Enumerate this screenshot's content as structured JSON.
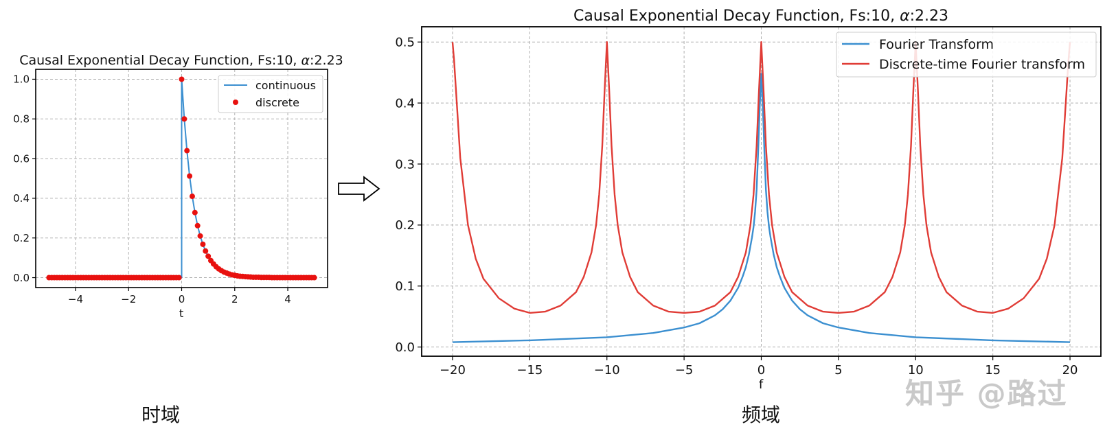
{
  "chart_data": [
    {
      "type": "line",
      "title_prefix": "Causal Exponential Decay Function, Fs:10, ",
      "title_alpha": "α",
      "title_suffix": ":2.23",
      "xlabel": "t",
      "ylabel": "",
      "xlim": [
        -5.5,
        5.5
      ],
      "ylim": [
        -0.05,
        1.05
      ],
      "xticks": [
        -4,
        -2,
        0,
        2,
        4
      ],
      "yticks": [
        0.0,
        0.2,
        0.4,
        0.6,
        0.8,
        1.0
      ],
      "xtick_labels": [
        "−4",
        "−2",
        "0",
        "2",
        "4"
      ],
      "ytick_labels": [
        "0.0",
        "0.2",
        "0.4",
        "0.6",
        "0.8",
        "1.0"
      ],
      "grid": true,
      "legend_position": "top-right",
      "series": [
        {
          "name": "continuous",
          "style": "line",
          "color": "#3b8fd0",
          "x": [
            -5.0,
            -0.0001,
            0.0,
            0.1,
            0.2,
            0.3,
            0.4,
            0.5,
            0.6,
            0.7,
            0.8,
            0.9,
            1.0,
            1.2,
            1.4,
            1.6,
            1.8,
            2.0,
            2.5,
            3.0,
            3.5,
            4.0,
            4.5,
            5.0
          ],
          "values": [
            0.0,
            0.0,
            1.0,
            0.8,
            0.64,
            0.512,
            0.41,
            0.328,
            0.262,
            0.21,
            0.168,
            0.134,
            0.108,
            0.069,
            0.044,
            0.028,
            0.018,
            0.012,
            0.004,
            0.001,
            0.0,
            0.0,
            0.0,
            0.0
          ]
        },
        {
          "name": "discrete",
          "style": "markers",
          "color": "#e8110f",
          "x": [
            -5.0,
            -4.9,
            -4.8,
            -4.7,
            -4.6,
            -4.5,
            -4.4,
            -4.3,
            -4.2,
            -4.1,
            -4.0,
            -3.9,
            -3.8,
            -3.7,
            -3.6,
            -3.5,
            -3.4,
            -3.3,
            -3.2,
            -3.1,
            -3.0,
            -2.9,
            -2.8,
            -2.7,
            -2.6,
            -2.5,
            -2.4,
            -2.3,
            -2.2,
            -2.1,
            -2.0,
            -1.9,
            -1.8,
            -1.7,
            -1.6,
            -1.5,
            -1.4,
            -1.3,
            -1.2,
            -1.1,
            -1.0,
            -0.9,
            -0.8,
            -0.7,
            -0.6,
            -0.5,
            -0.4,
            -0.3,
            -0.2,
            -0.1,
            0.0,
            0.1,
            0.2,
            0.3,
            0.4,
            0.5,
            0.6,
            0.7,
            0.8,
            0.9,
            1.0,
            1.1,
            1.2,
            1.3,
            1.4,
            1.5,
            1.6,
            1.7,
            1.8,
            1.9,
            2.0,
            2.1,
            2.2,
            2.3,
            2.4,
            2.5,
            2.6,
            2.7,
            2.8,
            2.9,
            3.0,
            3.1,
            3.2,
            3.3,
            3.4,
            3.5,
            3.6,
            3.7,
            3.8,
            3.9,
            4.0,
            4.1,
            4.2,
            4.3,
            4.4,
            4.5,
            4.6,
            4.7,
            4.8,
            4.9,
            5.0
          ],
          "values": [
            0.0,
            0.0,
            0.0,
            0.0,
            0.0,
            0.0,
            0.0,
            0.0,
            0.0,
            0.0,
            0.0,
            0.0,
            0.0,
            0.0,
            0.0,
            0.0,
            0.0,
            0.0,
            0.0,
            0.0,
            0.0,
            0.0,
            0.0,
            0.0,
            0.0,
            0.0,
            0.0,
            0.0,
            0.0,
            0.0,
            0.0,
            0.0,
            0.0,
            0.0,
            0.0,
            0.0,
            0.0,
            0.0,
            0.0,
            0.0,
            0.0,
            0.0,
            0.0,
            0.0,
            0.0,
            0.0,
            0.0,
            0.0,
            0.0,
            0.0,
            1.0,
            0.8,
            0.64,
            0.512,
            0.41,
            0.328,
            0.262,
            0.21,
            0.168,
            0.134,
            0.108,
            0.086,
            0.069,
            0.055,
            0.044,
            0.035,
            0.028,
            0.023,
            0.018,
            0.014,
            0.012,
            0.009,
            0.007,
            0.006,
            0.005,
            0.004,
            0.003,
            0.002,
            0.002,
            0.002,
            0.001,
            0.001,
            0.001,
            0.001,
            0.0,
            0.0,
            0.0,
            0.0,
            0.0,
            0.0,
            0.0,
            0.0,
            0.0,
            0.0,
            0.0,
            0.0,
            0.0,
            0.0,
            0.0,
            0.0,
            0.0
          ]
        }
      ]
    },
    {
      "type": "line",
      "title_prefix": "Causal Exponential Decay Function, Fs:10, ",
      "title_alpha": "α",
      "title_suffix": ":2.23",
      "xlabel": "f",
      "ylabel": "",
      "xlim": [
        -22,
        22
      ],
      "ylim": [
        -0.015,
        0.525
      ],
      "xticks": [
        -20,
        -15,
        -10,
        -5,
        0,
        5,
        10,
        15,
        20
      ],
      "yticks": [
        0.0,
        0.1,
        0.2,
        0.3,
        0.4,
        0.5
      ],
      "xtick_labels": [
        "−20",
        "−15",
        "−10",
        "−5",
        "0",
        "5",
        "10",
        "15",
        "20"
      ],
      "ytick_labels": [
        "0.0",
        "0.1",
        "0.2",
        "0.3",
        "0.4",
        "0.5"
      ],
      "grid": true,
      "legend_position": "top-right",
      "series": [
        {
          "name": "Fourier Transform",
          "color": "#3b8fd0",
          "x": [
            -20,
            -15,
            -10,
            -7,
            -5,
            -4,
            -3,
            -2.5,
            -2,
            -1.5,
            -1.2,
            -1,
            -0.8,
            -0.6,
            -0.5,
            -0.4,
            -0.3,
            -0.2,
            -0.1,
            0,
            0.1,
            0.2,
            0.3,
            0.4,
            0.5,
            0.6,
            0.8,
            1,
            1.2,
            1.5,
            2,
            2.5,
            3,
            4,
            5,
            7,
            10,
            15,
            20
          ],
          "values": [
            0.008,
            0.011,
            0.016,
            0.023,
            0.032,
            0.039,
            0.052,
            0.062,
            0.076,
            0.097,
            0.116,
            0.131,
            0.152,
            0.18,
            0.197,
            0.222,
            0.258,
            0.322,
            0.394,
            0.448,
            0.394,
            0.322,
            0.258,
            0.222,
            0.197,
            0.18,
            0.152,
            0.131,
            0.116,
            0.097,
            0.076,
            0.062,
            0.052,
            0.039,
            0.032,
            0.023,
            0.016,
            0.011,
            0.008
          ]
        },
        {
          "name": "Discrete-time Fourier transform",
          "color": "#e03c36",
          "x": [
            -20,
            -19.9,
            -19.7,
            -19.5,
            -19,
            -18.5,
            -18,
            -17,
            -16,
            -15,
            -14,
            -13,
            -12,
            -11.5,
            -11,
            -10.7,
            -10.5,
            -10.3,
            -10.15,
            -10,
            -9.85,
            -9.7,
            -9.5,
            -9.3,
            -9,
            -8.5,
            -8,
            -7,
            -6,
            -5,
            -4,
            -3,
            -2,
            -1.5,
            -1,
            -0.7,
            -0.5,
            -0.3,
            -0.15,
            0,
            0.15,
            0.3,
            0.5,
            0.7,
            1,
            1.5,
            2,
            3,
            4,
            5,
            6,
            7,
            8,
            8.5,
            9,
            9.3,
            9.5,
            9.7,
            9.85,
            10,
            10.15,
            10.3,
            10.5,
            10.7,
            11,
            11.5,
            12,
            13,
            14,
            15,
            16,
            17,
            18,
            18.5,
            19,
            19.5,
            19.7,
            19.9,
            20
          ],
          "values": [
            0.5,
            0.47,
            0.39,
            0.31,
            0.2,
            0.145,
            0.112,
            0.08,
            0.063,
            0.056,
            0.058,
            0.068,
            0.09,
            0.115,
            0.155,
            0.2,
            0.25,
            0.33,
            0.42,
            0.5,
            0.42,
            0.33,
            0.25,
            0.2,
            0.155,
            0.115,
            0.09,
            0.068,
            0.058,
            0.056,
            0.058,
            0.068,
            0.09,
            0.115,
            0.155,
            0.2,
            0.25,
            0.33,
            0.42,
            0.5,
            0.42,
            0.33,
            0.25,
            0.2,
            0.155,
            0.115,
            0.09,
            0.068,
            0.058,
            0.056,
            0.058,
            0.068,
            0.09,
            0.115,
            0.155,
            0.2,
            0.25,
            0.33,
            0.42,
            0.5,
            0.42,
            0.33,
            0.25,
            0.2,
            0.155,
            0.115,
            0.09,
            0.068,
            0.058,
            0.056,
            0.063,
            0.08,
            0.112,
            0.145,
            0.2,
            0.31,
            0.39,
            0.47,
            0.5
          ]
        }
      ]
    }
  ],
  "captions": {
    "time_domain": "时域",
    "frequency_domain": "频域"
  },
  "watermark": "知乎 @路过"
}
